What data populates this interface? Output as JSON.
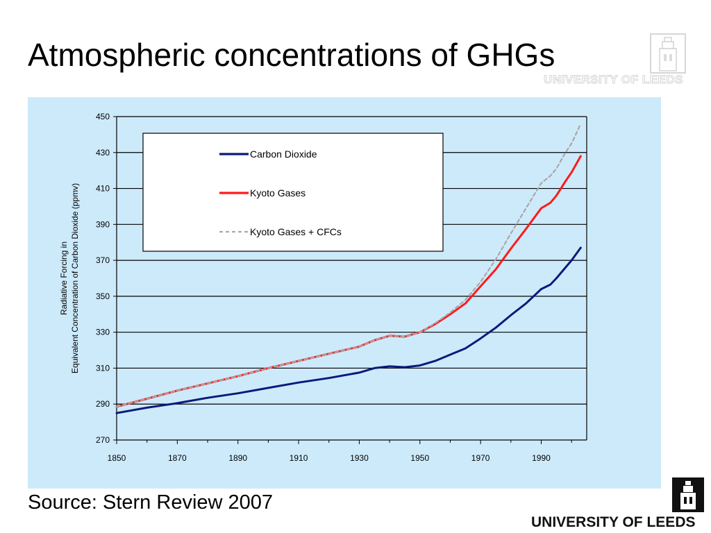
{
  "slide": {
    "title": "Atmospheric concentrations of GHGs",
    "source": "Source: Stern Review 2007"
  },
  "branding": {
    "header_watermark": "UNIVERSITY OF LEEDS",
    "footer_name": "UNIVERSITY OF LEEDS"
  },
  "colors": {
    "panel_background": "#cdeafb",
    "carbon_dioxide": "#0a1a7a",
    "kyoto_gases": "#ff1a1a",
    "kyoto_cfcs": "#a8a8a8"
  },
  "chart_data": {
    "type": "line",
    "title": "",
    "xlabel": "",
    "ylabel": "Radiative Forcing in\nEquivalent Concentration of Carbon Dioxide (ppmv)",
    "ylabel_lines": [
      "Radiative Forcing in",
      "Equivalent Concentration of Carbon Dioxide (ppmv)"
    ],
    "xlim": [
      1850,
      2005
    ],
    "ylim": [
      270,
      450
    ],
    "x_ticks": [
      1850,
      1870,
      1890,
      1910,
      1930,
      1950,
      1970,
      1990
    ],
    "x_tick_labels": [
      "1850",
      "1870",
      "1890",
      "1910",
      "1930",
      "1950",
      "1970",
      "1990"
    ],
    "y_ticks": [
      270,
      290,
      310,
      330,
      350,
      370,
      390,
      410,
      430,
      450
    ],
    "y_tick_labels": [
      "270",
      "290",
      "310",
      "330",
      "350",
      "370",
      "390",
      "410",
      "430",
      "450"
    ],
    "grid": "horizontal",
    "legend_position": "top-left",
    "series": [
      {
        "name": "Carbon Dioxide",
        "color": "#0a1a7a",
        "style": "solid",
        "x": [
          1850,
          1860,
          1870,
          1880,
          1890,
          1900,
          1910,
          1920,
          1930,
          1935,
          1940,
          1945,
          1950,
          1955,
          1960,
          1965,
          1970,
          1975,
          1980,
          1985,
          1990,
          1993,
          1995,
          1998,
          2000,
          2003
        ],
        "y": [
          285,
          288,
          290.5,
          293.5,
          296,
          299,
          302,
          304.5,
          307.5,
          310,
          311,
          310.5,
          311.5,
          314,
          317.5,
          321,
          326.5,
          332.5,
          339.5,
          346,
          354,
          356.5,
          360,
          366,
          370,
          377
        ]
      },
      {
        "name": "Kyoto Gases",
        "color": "#ff1a1a",
        "style": "solid",
        "x": [
          1850,
          1860,
          1870,
          1880,
          1890,
          1900,
          1910,
          1920,
          1930,
          1935,
          1940,
          1945,
          1950,
          1955,
          1960,
          1965,
          1970,
          1975,
          1980,
          1985,
          1990,
          1993,
          1995,
          1998,
          2000,
          2003
        ],
        "y": [
          288.5,
          293,
          297.5,
          301.5,
          305.5,
          310,
          314,
          318,
          322,
          325.5,
          328,
          327.5,
          330,
          334.5,
          340,
          346,
          355.5,
          365,
          376.5,
          387.5,
          399,
          402,
          406,
          414,
          419,
          428
        ]
      },
      {
        "name": "Kyoto Gases + CFCs",
        "color": "#a8a8a8",
        "style": "dashed",
        "x": [
          1850,
          1860,
          1870,
          1880,
          1890,
          1900,
          1910,
          1920,
          1930,
          1935,
          1940,
          1945,
          1950,
          1955,
          1960,
          1965,
          1970,
          1975,
          1980,
          1985,
          1990,
          1993,
          1995,
          1998,
          2000,
          2003
        ],
        "y": [
          288.5,
          293,
          297.5,
          301.5,
          305.5,
          310,
          314,
          318,
          322,
          325.5,
          328,
          327.5,
          330,
          335,
          341,
          348,
          358,
          370.5,
          385,
          399,
          413,
          417,
          421,
          430,
          435,
          446
        ]
      }
    ]
  }
}
